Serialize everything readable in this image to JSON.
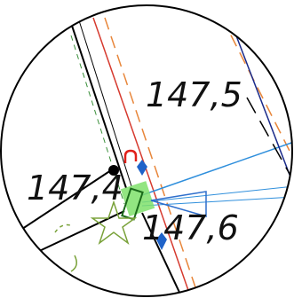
{
  "map": {
    "labels": {
      "upper_right": "147,5",
      "left": "147,4",
      "lower_right": "147,6"
    },
    "colors": {
      "background": "#ffffff",
      "boundary_black": "#000000",
      "centerline_red": "#d63a2f",
      "dash_orange": "#e8863a",
      "dash_green": "#3a8f3a",
      "line_blue": "#2f8fdc",
      "route_navy": "#1a2a8a",
      "marker_blue": "#1f63c9",
      "highlight_green": "#7fe06b",
      "symbol_green": "#7aa23a",
      "anchor_red": "#e0201a"
    },
    "icons": {
      "survey_point": "filled-dot",
      "power_pole": "rectangle-box",
      "anchor": "u-shape",
      "triangle_marker": "triangle-outline",
      "connector": "diamond",
      "tree": "star-outline"
    }
  }
}
